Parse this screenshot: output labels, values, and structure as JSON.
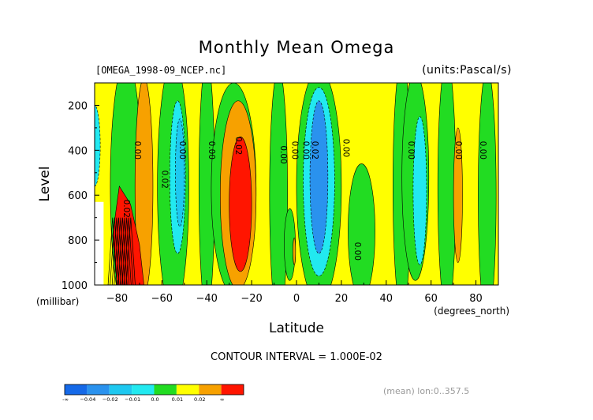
{
  "header": {
    "title": "Monthly Mean Omega",
    "file_label": "[OMEGA_1998-09_NCEP.nc]",
    "units_label": "(units:Pascal/s)"
  },
  "footer": {
    "contour_interval": "CONTOUR INTERVAL = 1.000E-02",
    "mean_note": "(mean) lon:0..357.5"
  },
  "chart_data": {
    "type": "heatmap",
    "title": "Monthly Mean Omega",
    "xlabel": "Latitude",
    "xunits": "(degrees_north)",
    "ylabel": "Level",
    "yunits": "(millibar)",
    "xlim": [
      -90,
      90
    ],
    "ylim": [
      1000,
      100
    ],
    "xticks": [
      {
        "value": -80,
        "label": "−80"
      },
      {
        "value": -60,
        "label": "−60"
      },
      {
        "value": -40,
        "label": "−40"
      },
      {
        "value": -20,
        "label": "−20"
      },
      {
        "value": 0,
        "label": "0"
      },
      {
        "value": 20,
        "label": "20"
      },
      {
        "value": 40,
        "label": "40"
      },
      {
        "value": 60,
        "label": "60"
      },
      {
        "value": 80,
        "label": "80"
      }
    ],
    "yticks": [
      {
        "value": 200,
        "label": "200"
      },
      {
        "value": 400,
        "label": "400"
      },
      {
        "value": 600,
        "label": "600"
      },
      {
        "value": 800,
        "label": "800"
      },
      {
        "value": 1000,
        "label": "1000"
      }
    ],
    "contour_labels": [
      {
        "lat": -72,
        "p": 400,
        "text": "0.00"
      },
      {
        "lat": -52,
        "p": 400,
        "text": "0.00"
      },
      {
        "lat": -39,
        "p": 400,
        "text": "0.00"
      },
      {
        "lat": -27,
        "p": 380,
        "text": "0.02"
      },
      {
        "lat": -7,
        "p": 420,
        "text": "0.00"
      },
      {
        "lat": -2,
        "p": 400,
        "text": "0.00"
      },
      {
        "lat": 3,
        "p": 400,
        "text": "0.00"
      },
      {
        "lat": 7,
        "p": 400,
        "text": "0.02"
      },
      {
        "lat": 21,
        "p": 390,
        "text": "0.00"
      },
      {
        "lat": 26,
        "p": 850,
        "text": "0.00"
      },
      {
        "lat": 50,
        "p": 400,
        "text": "0.00"
      },
      {
        "lat": 71,
        "p": 400,
        "text": "0.00"
      },
      {
        "lat": 82,
        "p": 400,
        "text": "0.00"
      },
      {
        "lat": -60,
        "p": 530,
        "text": "0.02"
      },
      {
        "lat": -77,
        "p": 660,
        "text": "0.02"
      }
    ],
    "levels": [
      {
        "label": "-∞",
        "color": "#1569e8"
      },
      {
        "label": "−0.04",
        "color": "#2a92ee"
      },
      {
        "label": "−0.02",
        "color": "#1ec8f0"
      },
      {
        "label": "−0.01",
        "color": "#22e9f0"
      },
      {
        "label": "0.0",
        "color": "#22dc22"
      },
      {
        "label": "0.01",
        "color": "#ffff00"
      },
      {
        "label": "0.02",
        "color": "#f7a100"
      },
      {
        "label": "∞",
        "color": "#ff1500"
      }
    ]
  }
}
